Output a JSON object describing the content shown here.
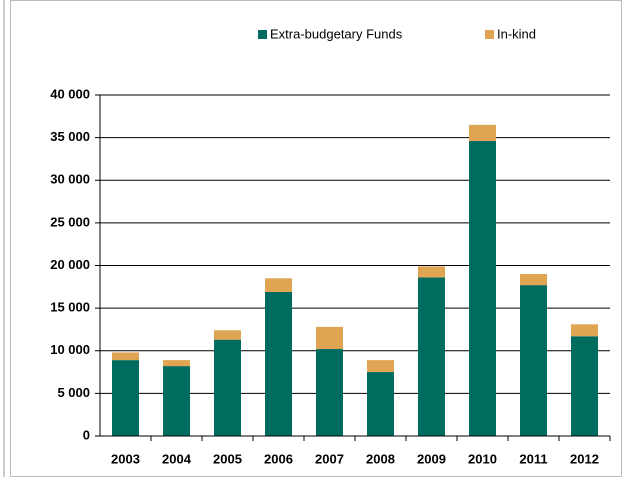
{
  "chart_data": {
    "type": "bar",
    "stacked": true,
    "categories": [
      "2003",
      "2004",
      "2005",
      "2006",
      "2007",
      "2008",
      "2009",
      "2010",
      "2011",
      "2012"
    ],
    "series": [
      {
        "name": "Extra-budgetary Funds",
        "color": "#006b5f",
        "values": [
          8900,
          8200,
          11300,
          16900,
          10200,
          7500,
          18600,
          34600,
          17700,
          11700
        ]
      },
      {
        "name": "In-kind",
        "color": "#e0a552",
        "values": [
          900,
          700,
          1100,
          1600,
          2600,
          1400,
          1300,
          1900,
          1300,
          1400
        ]
      }
    ],
    "ylim": [
      0,
      40000
    ],
    "yticks": [
      0,
      {
        "value": 5000,
        "label": "5 000"
      },
      {
        "value": 10000,
        "label": "10 000"
      },
      {
        "value": 15000,
        "label": "15 000"
      },
      {
        "value": 20000,
        "label": "20 000"
      },
      {
        "value": 25000,
        "label": "25 000"
      },
      {
        "value": 30000,
        "label": "30 000"
      },
      {
        "value": 35000,
        "label": "35 000"
      },
      {
        "value": 40000,
        "label": "40 000"
      }
    ],
    "grid": true,
    "legend": "top"
  }
}
